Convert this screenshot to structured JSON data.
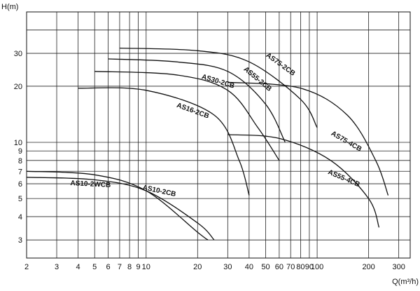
{
  "chart_data": {
    "type": "line",
    "xlabel": "Q(m³/h)",
    "ylabel": "H(m)",
    "x_scale": "log",
    "y_scale": "log",
    "xlim": [
      2,
      350
    ],
    "ylim": [
      2.4,
      50
    ],
    "grid": true,
    "x_ticks": [
      2,
      3,
      4,
      5,
      6,
      7,
      8,
      9,
      10,
      20,
      30,
      40,
      50,
      60,
      70,
      80,
      90,
      100,
      200,
      300
    ],
    "x_tick_labels": [
      "2",
      "3",
      "4",
      "5",
      "6",
      "7",
      "8",
      "9",
      "10",
      "20",
      "30",
      "40",
      "50",
      "60",
      "70",
      "80",
      "90",
      "100",
      "200",
      "300"
    ],
    "y_ticks": [
      3,
      4,
      5,
      6,
      7,
      8,
      9,
      10,
      20,
      30
    ],
    "y_tick_labels": [
      "3",
      "4",
      "5",
      "6",
      "7",
      "8",
      "9",
      "10",
      "20",
      "30"
    ],
    "series": [
      {
        "name": "AS75-2CB",
        "x": [
          7,
          20,
          40,
          80,
          100
        ],
        "y": [
          32,
          31,
          27,
          17,
          12
        ]
      },
      {
        "name": "AS55-2CB",
        "x": [
          6,
          15,
          30,
          50,
          65
        ],
        "y": [
          28,
          27,
          24,
          16,
          10
        ]
      },
      {
        "name": "AS30-2CB",
        "x": [
          5,
          15,
          30,
          45,
          60
        ],
        "y": [
          24,
          23,
          19,
          12,
          8
        ]
      },
      {
        "name": "AS16-2CB",
        "x": [
          4,
          10,
          25,
          35,
          40
        ],
        "y": [
          19.5,
          19,
          14,
          8,
          5.2
        ]
      },
      {
        "name": "AS75-4CB",
        "x": [
          30,
          80,
          150,
          220,
          260
        ],
        "y": [
          21,
          19.5,
          14,
          8,
          5.2
        ]
      },
      {
        "name": "AS55-4CB",
        "x": [
          30,
          60,
          120,
          200,
          230
        ],
        "y": [
          11,
          10.5,
          8,
          5,
          3.5
        ]
      },
      {
        "name": "AS10-2CB",
        "x": [
          2,
          5,
          10,
          20,
          25
        ],
        "y": [
          6.5,
          6.3,
          5.5,
          3.7,
          3
        ]
      },
      {
        "name": "AS10-2WCB",
        "x": [
          2,
          5,
          10,
          20,
          23
        ],
        "y": [
          7,
          6.7,
          5.5,
          3.3,
          3
        ]
      }
    ],
    "labels": [
      {
        "text": "AS75-2CB",
        "x": 50,
        "y": 29
      },
      {
        "text": "AS55-2CB",
        "x": 37,
        "y": 24.5
      },
      {
        "text": "AS30-2CB",
        "x": 21,
        "y": 22
      },
      {
        "text": "AS16-2CB",
        "x": 15,
        "y": 15.5
      },
      {
        "text": "AS75-4CB",
        "x": 120,
        "y": 11
      },
      {
        "text": "AS55-4CB",
        "x": 115,
        "y": 6.8
      },
      {
        "text": "AS10-2CB",
        "x": 9.5,
        "y": 5.6
      },
      {
        "text": "AS10-2WCB",
        "x": 3.6,
        "y": 5.9
      }
    ]
  }
}
